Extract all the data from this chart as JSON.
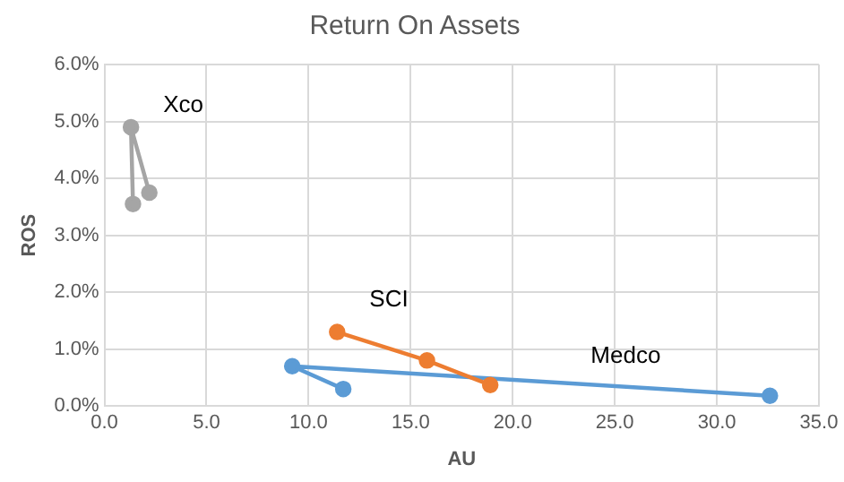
{
  "chart_data": {
    "type": "line",
    "title": "Return On Assets",
    "xlabel": "AU",
    "ylabel": "ROS",
    "grid": true,
    "legend": false,
    "marker": "circle",
    "line_style": "solid",
    "xlim": [
      0,
      35
    ],
    "xticks": [
      {
        "value": 0,
        "label": "0.0"
      },
      {
        "value": 5,
        "label": "5.0"
      },
      {
        "value": 10,
        "label": "10.0"
      },
      {
        "value": 15,
        "label": "15.0"
      },
      {
        "value": 20,
        "label": "20.0"
      },
      {
        "value": 25,
        "label": "25.0"
      },
      {
        "value": 30,
        "label": "30.0"
      },
      {
        "value": 35,
        "label": "35.0"
      }
    ],
    "ylim": [
      0,
      6
    ],
    "yticks": [
      {
        "value": 0,
        "label": "0.0%"
      },
      {
        "value": 1,
        "label": "1.0%"
      },
      {
        "value": 2,
        "label": "2.0%"
      },
      {
        "value": 3,
        "label": "3.0%"
      },
      {
        "value": 4,
        "label": "4.0%"
      },
      {
        "value": 5,
        "label": "5.0%"
      },
      {
        "value": 6,
        "label": "6.0%"
      }
    ],
    "series": [
      {
        "name": "Xco",
        "color": "#a5a5a5",
        "x": [
          1.4,
          1.3,
          2.2
        ],
        "values": [
          3.55,
          4.9,
          3.75
        ]
      },
      {
        "name": "SCI",
        "color": "#ed7d31",
        "x": [
          11.4,
          15.8,
          18.9
        ],
        "values": [
          1.3,
          0.8,
          0.37
        ]
      },
      {
        "name": "Medco",
        "color": "#5b9bd5",
        "x": [
          11.7,
          9.2,
          32.6
        ],
        "values": [
          0.3,
          0.7,
          0.18
        ]
      }
    ]
  }
}
